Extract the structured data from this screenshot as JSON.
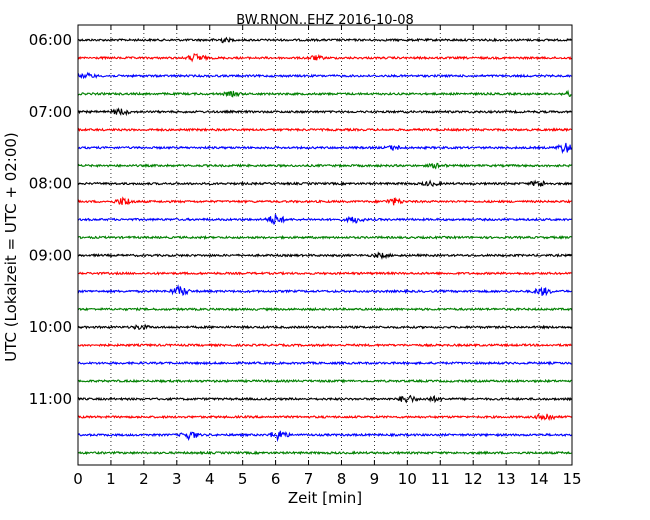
{
  "chart_data": {
    "type": "line",
    "title": "BW.RNON..EHZ 2016-10-08",
    "xlabel": "Zeit  [min]",
    "ylabel": "UTC (Lokalzeit = UTC + 02:00)",
    "x_range": [
      0,
      15
    ],
    "x_ticks": [
      "0",
      "1",
      "2",
      "3",
      "4",
      "5",
      "6",
      "7",
      "8",
      "9",
      "10",
      "11",
      "12",
      "13",
      "14",
      "15"
    ],
    "y_tick_labels": [
      "06:00",
      "07:00",
      "08:00",
      "09:00",
      "10:00",
      "11:00"
    ],
    "grid": "vertical dotted",
    "trace_colors": [
      "#000000",
      "#ff0000",
      "#0000ff",
      "#008000"
    ],
    "trace_rows": [
      "06:00",
      "06:15",
      "06:30",
      "06:45",
      "07:00",
      "07:15",
      "07:30",
      "07:45",
      "08:00",
      "08:15",
      "08:30",
      "08:45",
      "09:00",
      "09:15",
      "09:30",
      "09:45",
      "10:00",
      "10:15",
      "10:30",
      "10:45",
      "11:00",
      "11:15",
      "11:30",
      "11:45"
    ],
    "events": [
      {
        "row": 0,
        "x": 4.4,
        "amp": 2
      },
      {
        "row": 1,
        "x": 3.6,
        "amp": 4
      },
      {
        "row": 1,
        "x": 7.2,
        "amp": 2
      },
      {
        "row": 2,
        "x": 0.3,
        "amp": 2
      },
      {
        "row": 3,
        "x": 4.7,
        "amp": 2
      },
      {
        "row": 3,
        "x": 15.0,
        "amp": 4
      },
      {
        "row": 4,
        "x": 1.3,
        "amp": 3
      },
      {
        "row": 6,
        "x": 9.6,
        "amp": 2
      },
      {
        "row": 6,
        "x": 14.8,
        "amp": 5
      },
      {
        "row": 7,
        "x": 10.9,
        "amp": 2
      },
      {
        "row": 8,
        "x": 14.0,
        "amp": 3
      },
      {
        "row": 8,
        "x": 10.7,
        "amp": 2
      },
      {
        "row": 9,
        "x": 1.4,
        "amp": 4
      },
      {
        "row": 9,
        "x": 9.6,
        "amp": 3
      },
      {
        "row": 10,
        "x": 6.0,
        "amp": 5
      },
      {
        "row": 10,
        "x": 8.4,
        "amp": 3
      },
      {
        "row": 12,
        "x": 9.2,
        "amp": 2
      },
      {
        "row": 14,
        "x": 3.1,
        "amp": 5
      },
      {
        "row": 14,
        "x": 14.1,
        "amp": 4
      },
      {
        "row": 16,
        "x": 1.9,
        "amp": 2
      },
      {
        "row": 20,
        "x": 10.0,
        "amp": 4
      },
      {
        "row": 20,
        "x": 10.8,
        "amp": 2
      },
      {
        "row": 21,
        "x": 14.2,
        "amp": 4
      },
      {
        "row": 22,
        "x": 3.4,
        "amp": 4
      },
      {
        "row": 22,
        "x": 6.1,
        "amp": 5
      }
    ]
  }
}
